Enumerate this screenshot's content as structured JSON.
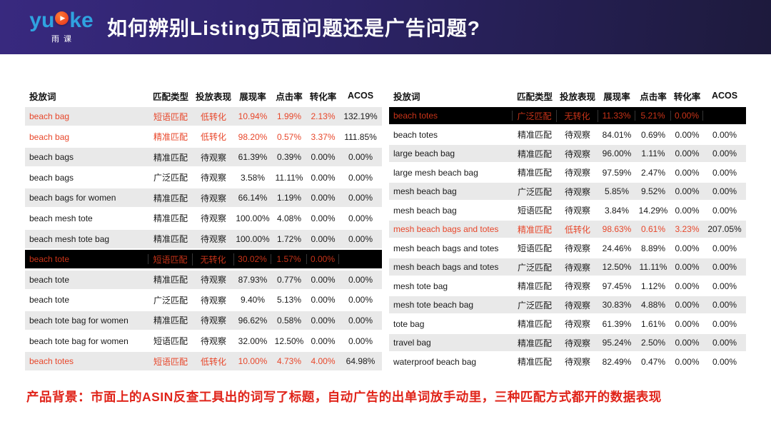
{
  "header": {
    "logo": {
      "part1": "yu",
      "part2": "ke",
      "play_icon": "▶",
      "subtitle": "雨课"
    },
    "title": "如何辨别Listing页面问题还是广告问题?"
  },
  "columns": [
    {
      "key": "keyword",
      "label": "投放词"
    },
    {
      "key": "match_type",
      "label": "匹配类型"
    },
    {
      "key": "performance",
      "label": "投放表现"
    },
    {
      "key": "impression_rate",
      "label": "展现率"
    },
    {
      "key": "ctr",
      "label": "点击率"
    },
    {
      "key": "cvr",
      "label": "转化率"
    },
    {
      "key": "acos",
      "label": "ACOS"
    }
  ],
  "left_table": {
    "rows": [
      {
        "keyword": "beach bag",
        "match_type": "短语匹配",
        "performance": "低转化",
        "impression_rate": "10.94%",
        "ctr": "1.99%",
        "cvr": "2.13%",
        "acos": "132.19%",
        "style": "alert"
      },
      {
        "keyword": "beach bag",
        "match_type": "精准匹配",
        "performance": "低转化",
        "impression_rate": "98.20%",
        "ctr": "0.57%",
        "cvr": "3.37%",
        "acos": "111.85%",
        "style": "alert"
      },
      {
        "keyword": "beach bags",
        "match_type": "精准匹配",
        "performance": "待观察",
        "impression_rate": "61.39%",
        "ctr": "0.39%",
        "cvr": "0.00%",
        "acos": "0.00%",
        "style": "normal"
      },
      {
        "keyword": "beach bags",
        "match_type": "广泛匹配",
        "performance": "待观察",
        "impression_rate": "3.58%",
        "ctr": "11.11%",
        "cvr": "0.00%",
        "acos": "0.00%",
        "style": "normal"
      },
      {
        "keyword": "beach bags for women",
        "match_type": "精准匹配",
        "performance": "待观察",
        "impression_rate": "66.14%",
        "ctr": "1.19%",
        "cvr": "0.00%",
        "acos": "0.00%",
        "style": "normal"
      },
      {
        "keyword": "beach mesh tote",
        "match_type": "精准匹配",
        "performance": "待观察",
        "impression_rate": "100.00%",
        "ctr": "4.08%",
        "cvr": "0.00%",
        "acos": "0.00%",
        "style": "normal"
      },
      {
        "keyword": "beach mesh tote bag",
        "match_type": "精准匹配",
        "performance": "待观察",
        "impression_rate": "100.00%",
        "ctr": "1.72%",
        "cvr": "0.00%",
        "acos": "0.00%",
        "style": "normal"
      },
      {
        "keyword": "beach tote",
        "match_type": "短语匹配",
        "performance": "无转化",
        "impression_rate": "30.02%",
        "ctr": "1.57%",
        "cvr": "0.00%",
        "acos": "",
        "style": "highlight"
      },
      {
        "keyword": "beach tote",
        "match_type": "精准匹配",
        "performance": "待观察",
        "impression_rate": "87.93%",
        "ctr": "0.77%",
        "cvr": "0.00%",
        "acos": "0.00%",
        "style": "normal"
      },
      {
        "keyword": "beach tote",
        "match_type": "广泛匹配",
        "performance": "待观察",
        "impression_rate": "9.40%",
        "ctr": "5.13%",
        "cvr": "0.00%",
        "acos": "0.00%",
        "style": "normal"
      },
      {
        "keyword": "beach tote bag for women",
        "match_type": "精准匹配",
        "performance": "待观察",
        "impression_rate": "96.62%",
        "ctr": "0.58%",
        "cvr": "0.00%",
        "acos": "0.00%",
        "style": "normal"
      },
      {
        "keyword": "beach tote bag for women",
        "match_type": "短语匹配",
        "performance": "待观察",
        "impression_rate": "32.00%",
        "ctr": "12.50%",
        "cvr": "0.00%",
        "acos": "0.00%",
        "style": "normal"
      },
      {
        "keyword": "beach totes",
        "match_type": "短语匹配",
        "performance": "低转化",
        "impression_rate": "10.00%",
        "ctr": "4.73%",
        "cvr": "4.00%",
        "acos": "64.98%",
        "style": "alert"
      }
    ]
  },
  "right_table": {
    "rows": [
      {
        "keyword": "beach totes",
        "match_type": "广泛匹配",
        "performance": "无转化",
        "impression_rate": "11.33%",
        "ctr": "5.21%",
        "cvr": "0.00%",
        "acos": "",
        "style": "highlight"
      },
      {
        "keyword": "beach totes",
        "match_type": "精准匹配",
        "performance": "待观察",
        "impression_rate": "84.01%",
        "ctr": "0.69%",
        "cvr": "0.00%",
        "acos": "0.00%",
        "style": "normal"
      },
      {
        "keyword": "large beach bag",
        "match_type": "精准匹配",
        "performance": "待观察",
        "impression_rate": "96.00%",
        "ctr": "1.11%",
        "cvr": "0.00%",
        "acos": "0.00%",
        "style": "normal"
      },
      {
        "keyword": "large mesh beach bag",
        "match_type": "精准匹配",
        "performance": "待观察",
        "impression_rate": "97.59%",
        "ctr": "2.47%",
        "cvr": "0.00%",
        "acos": "0.00%",
        "style": "normal"
      },
      {
        "keyword": "mesh beach bag",
        "match_type": "广泛匹配",
        "performance": "待观察",
        "impression_rate": "5.85%",
        "ctr": "9.52%",
        "cvr": "0.00%",
        "acos": "0.00%",
        "style": "normal"
      },
      {
        "keyword": "mesh beach bag",
        "match_type": "短语匹配",
        "performance": "待观察",
        "impression_rate": "3.84%",
        "ctr": "14.29%",
        "cvr": "0.00%",
        "acos": "0.00%",
        "style": "normal"
      },
      {
        "keyword": "mesh beach bags and totes",
        "match_type": "精准匹配",
        "performance": "低转化",
        "impression_rate": "98.63%",
        "ctr": "0.61%",
        "cvr": "3.23%",
        "acos": "207.05%",
        "style": "alert"
      },
      {
        "keyword": "mesh beach bags and totes",
        "match_type": "短语匹配",
        "performance": "待观察",
        "impression_rate": "24.46%",
        "ctr": "8.89%",
        "cvr": "0.00%",
        "acos": "0.00%",
        "style": "normal"
      },
      {
        "keyword": "mesh beach bags and totes",
        "match_type": "广泛匹配",
        "performance": "待观察",
        "impression_rate": "12.50%",
        "ctr": "11.11%",
        "cvr": "0.00%",
        "acos": "0.00%",
        "style": "normal"
      },
      {
        "keyword": "mesh tote bag",
        "match_type": "精准匹配",
        "performance": "待观察",
        "impression_rate": "97.45%",
        "ctr": "1.12%",
        "cvr": "0.00%",
        "acos": "0.00%",
        "style": "normal"
      },
      {
        "keyword": "mesh tote beach bag",
        "match_type": "广泛匹配",
        "performance": "待观察",
        "impression_rate": "30.83%",
        "ctr": "4.88%",
        "cvr": "0.00%",
        "acos": "0.00%",
        "style": "normal"
      },
      {
        "keyword": "tote bag",
        "match_type": "精准匹配",
        "performance": "待观察",
        "impression_rate": "61.39%",
        "ctr": "1.61%",
        "cvr": "0.00%",
        "acos": "0.00%",
        "style": "normal"
      },
      {
        "keyword": "travel bag",
        "match_type": "精准匹配",
        "performance": "待观察",
        "impression_rate": "95.24%",
        "ctr": "2.50%",
        "cvr": "0.00%",
        "acos": "0.00%",
        "style": "normal"
      },
      {
        "keyword": "waterproof beach bag",
        "match_type": "精准匹配",
        "performance": "待观察",
        "impression_rate": "82.49%",
        "ctr": "0.47%",
        "cvr": "0.00%",
        "acos": "0.00%",
        "style": "normal"
      }
    ]
  },
  "footer": {
    "text": "产品背景：市面上的ASIN反查工具出的词写了标题，自动广告的出单词放手动里，三种匹配方式都开的数据表现"
  },
  "colors": {
    "accent_red": "#e8472b",
    "highlight_row_bg": "#000000",
    "highlight_row_text": "#c93318",
    "zebra_row_bg": "#e9e9e9",
    "header_gradient_start": "#38297f",
    "header_gradient_end": "#1d1a3c",
    "logo_blue": "#2fa3e0",
    "logo_badge_orange": "#e8301c",
    "footer_red": "#e0241a"
  }
}
